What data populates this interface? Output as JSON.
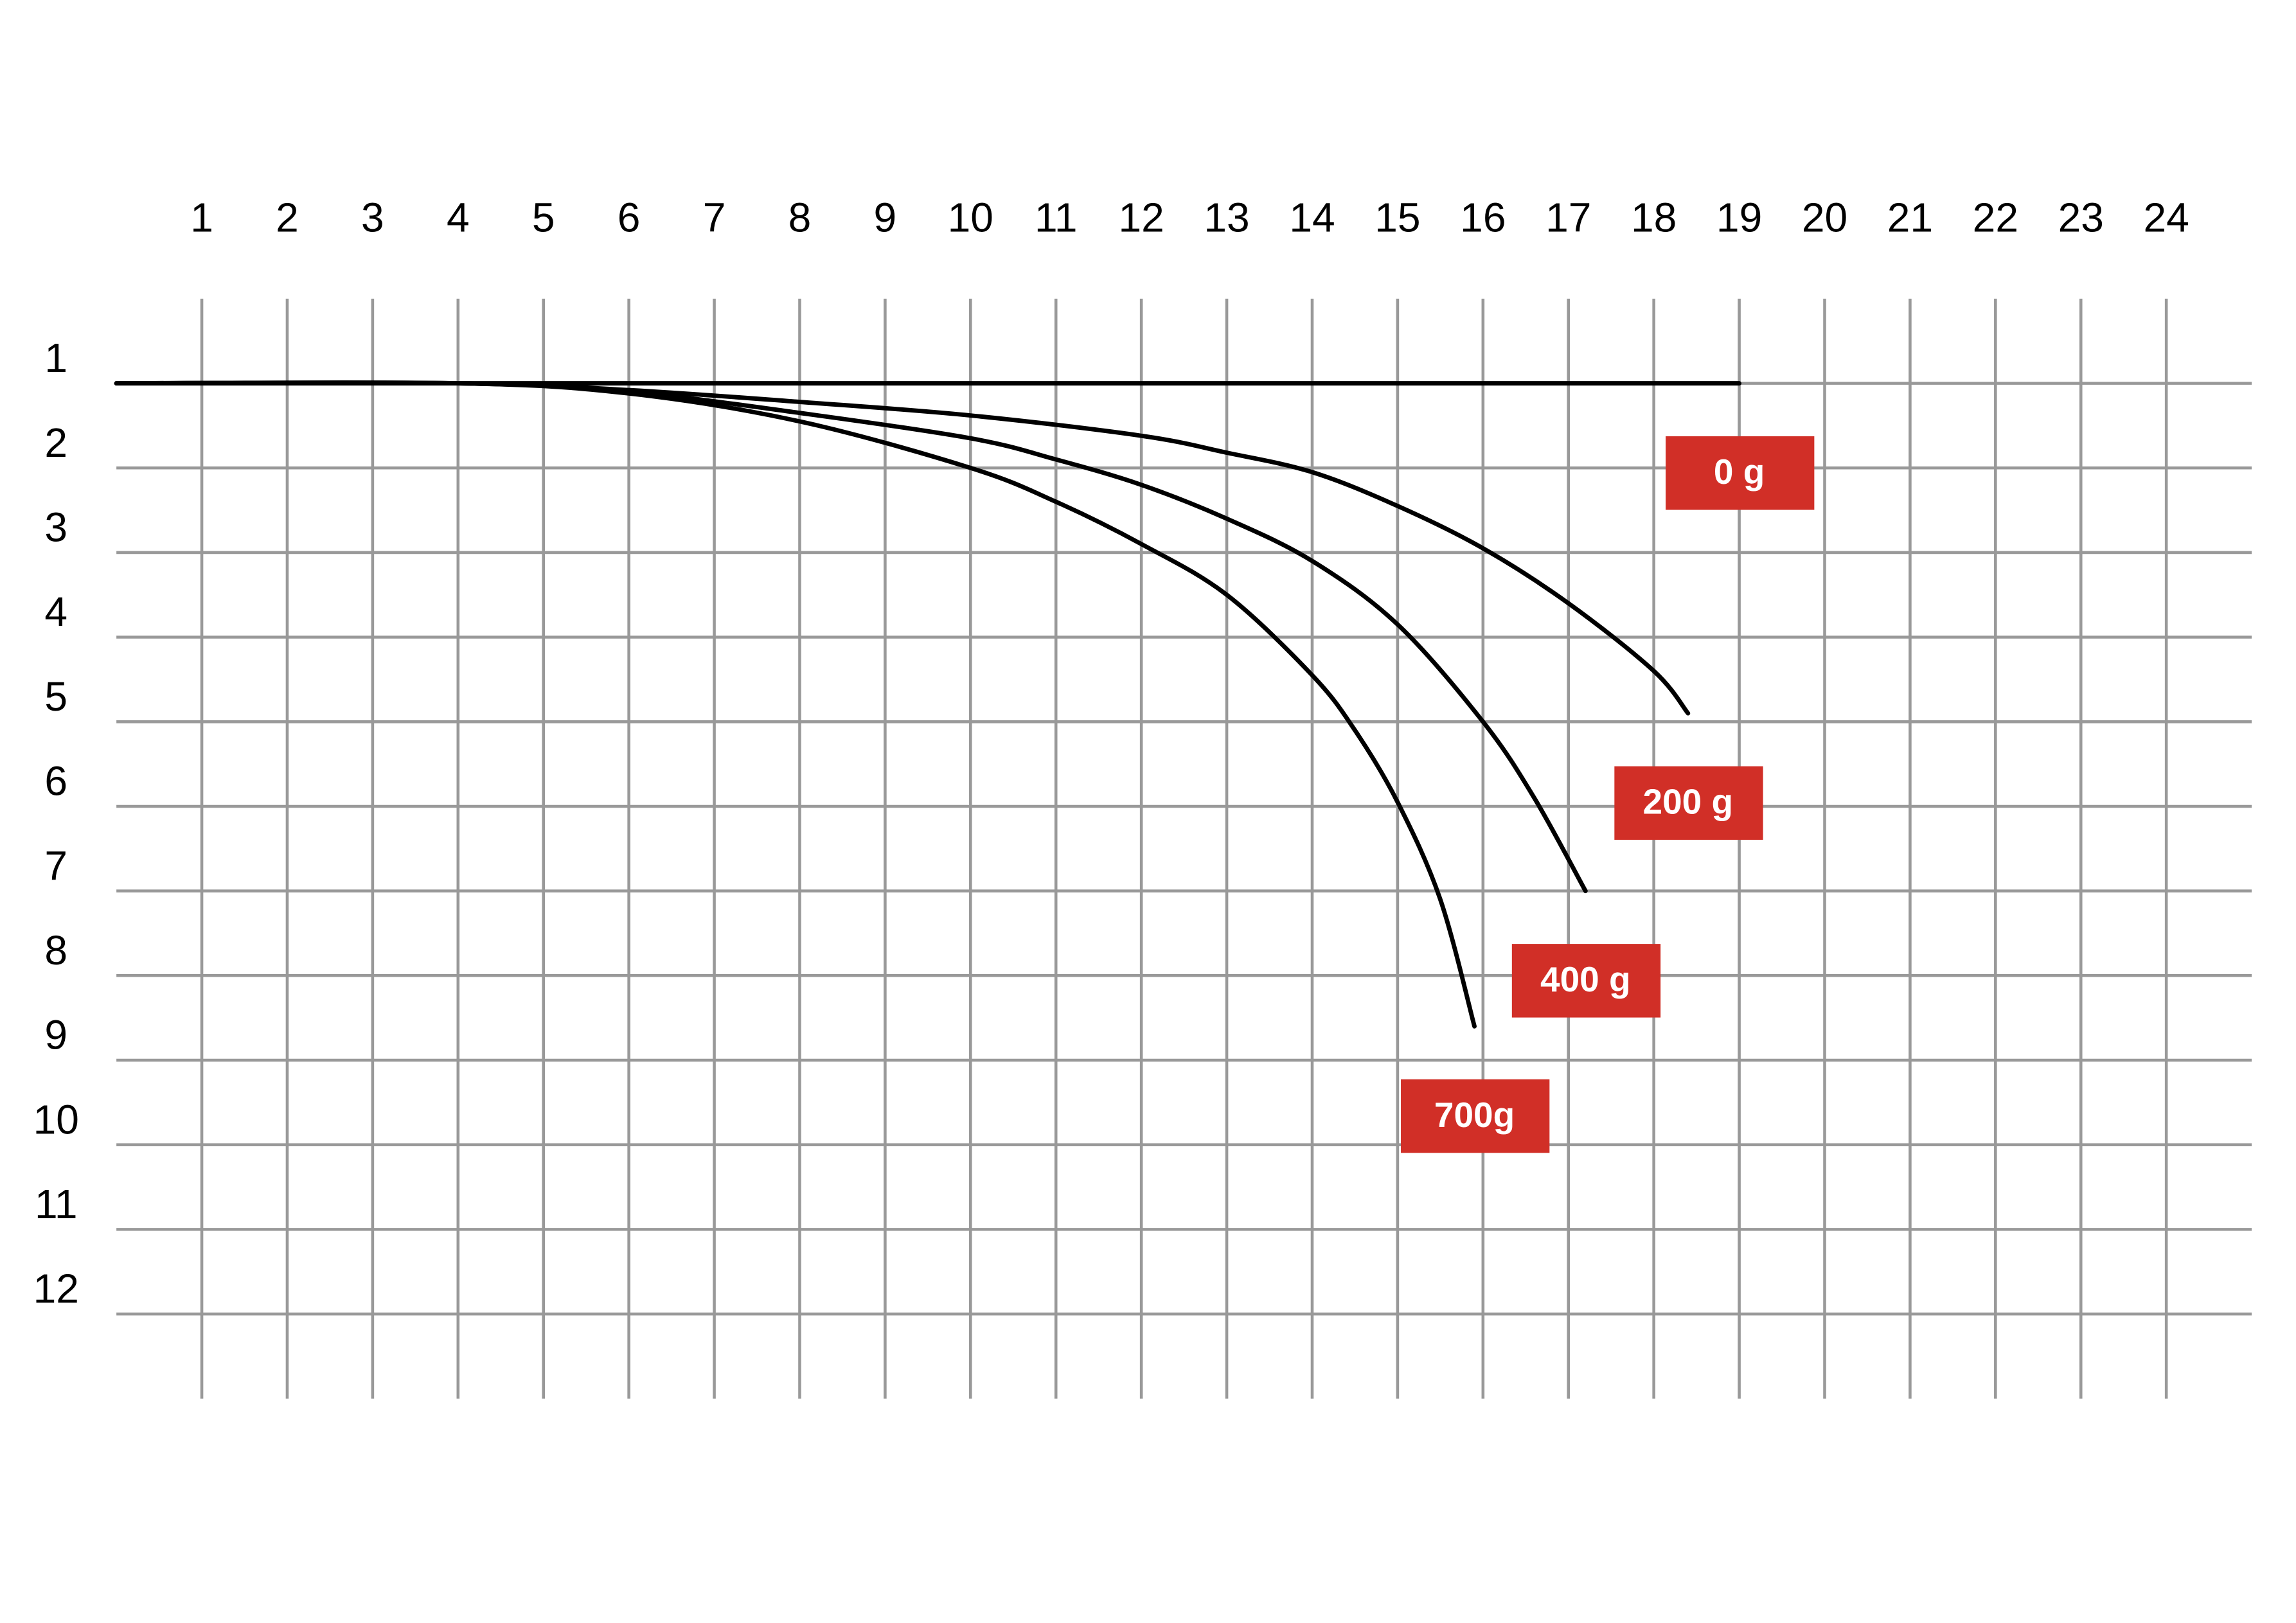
{
  "chart_data": {
    "type": "line",
    "xlim": [
      0,
      25
    ],
    "ylim": [
      0,
      13
    ],
    "y_inverted": true,
    "xticks": [
      1,
      2,
      3,
      4,
      5,
      6,
      7,
      8,
      9,
      10,
      11,
      12,
      13,
      14,
      15,
      16,
      17,
      18,
      19,
      20,
      21,
      22,
      23,
      24
    ],
    "yticks": [
      1,
      2,
      3,
      4,
      5,
      6,
      7,
      8,
      9,
      10,
      11,
      12
    ],
    "grid": true,
    "grid_color": "#999999",
    "label_color": "#d12f27",
    "series": [
      {
        "name": "0 g",
        "color": "#000000",
        "x": [
          0,
          5,
          10,
          15,
          19
        ],
        "values": [
          1,
          1,
          1,
          1,
          1
        ]
      },
      {
        "name": "200 g",
        "color": "#000000",
        "x": [
          0,
          4,
          6,
          8,
          10,
          12,
          13,
          14,
          15,
          16,
          17,
          18,
          18.4
        ],
        "values": [
          1,
          1,
          1.08,
          1.22,
          1.38,
          1.62,
          1.82,
          2.05,
          2.45,
          2.95,
          3.6,
          4.4,
          4.9
        ]
      },
      {
        "name": "400 g",
        "color": "#000000",
        "x": [
          0,
          4,
          6,
          8,
          10,
          11,
          12,
          13,
          14,
          15,
          16,
          16.6,
          17.2
        ],
        "values": [
          1,
          1,
          1.1,
          1.35,
          1.65,
          1.9,
          2.2,
          2.6,
          3.1,
          3.85,
          5,
          5.9,
          7
        ]
      },
      {
        "name": "700g",
        "color": "#000000",
        "x": [
          0,
          4,
          6,
          8,
          10,
          11,
          12,
          13,
          14,
          14.5,
          15,
          15.5,
          15.9
        ],
        "values": [
          1,
          1,
          1.12,
          1.45,
          2,
          2.4,
          2.9,
          3.5,
          4.45,
          5.1,
          5.95,
          7.1,
          8.6
        ]
      }
    ]
  }
}
